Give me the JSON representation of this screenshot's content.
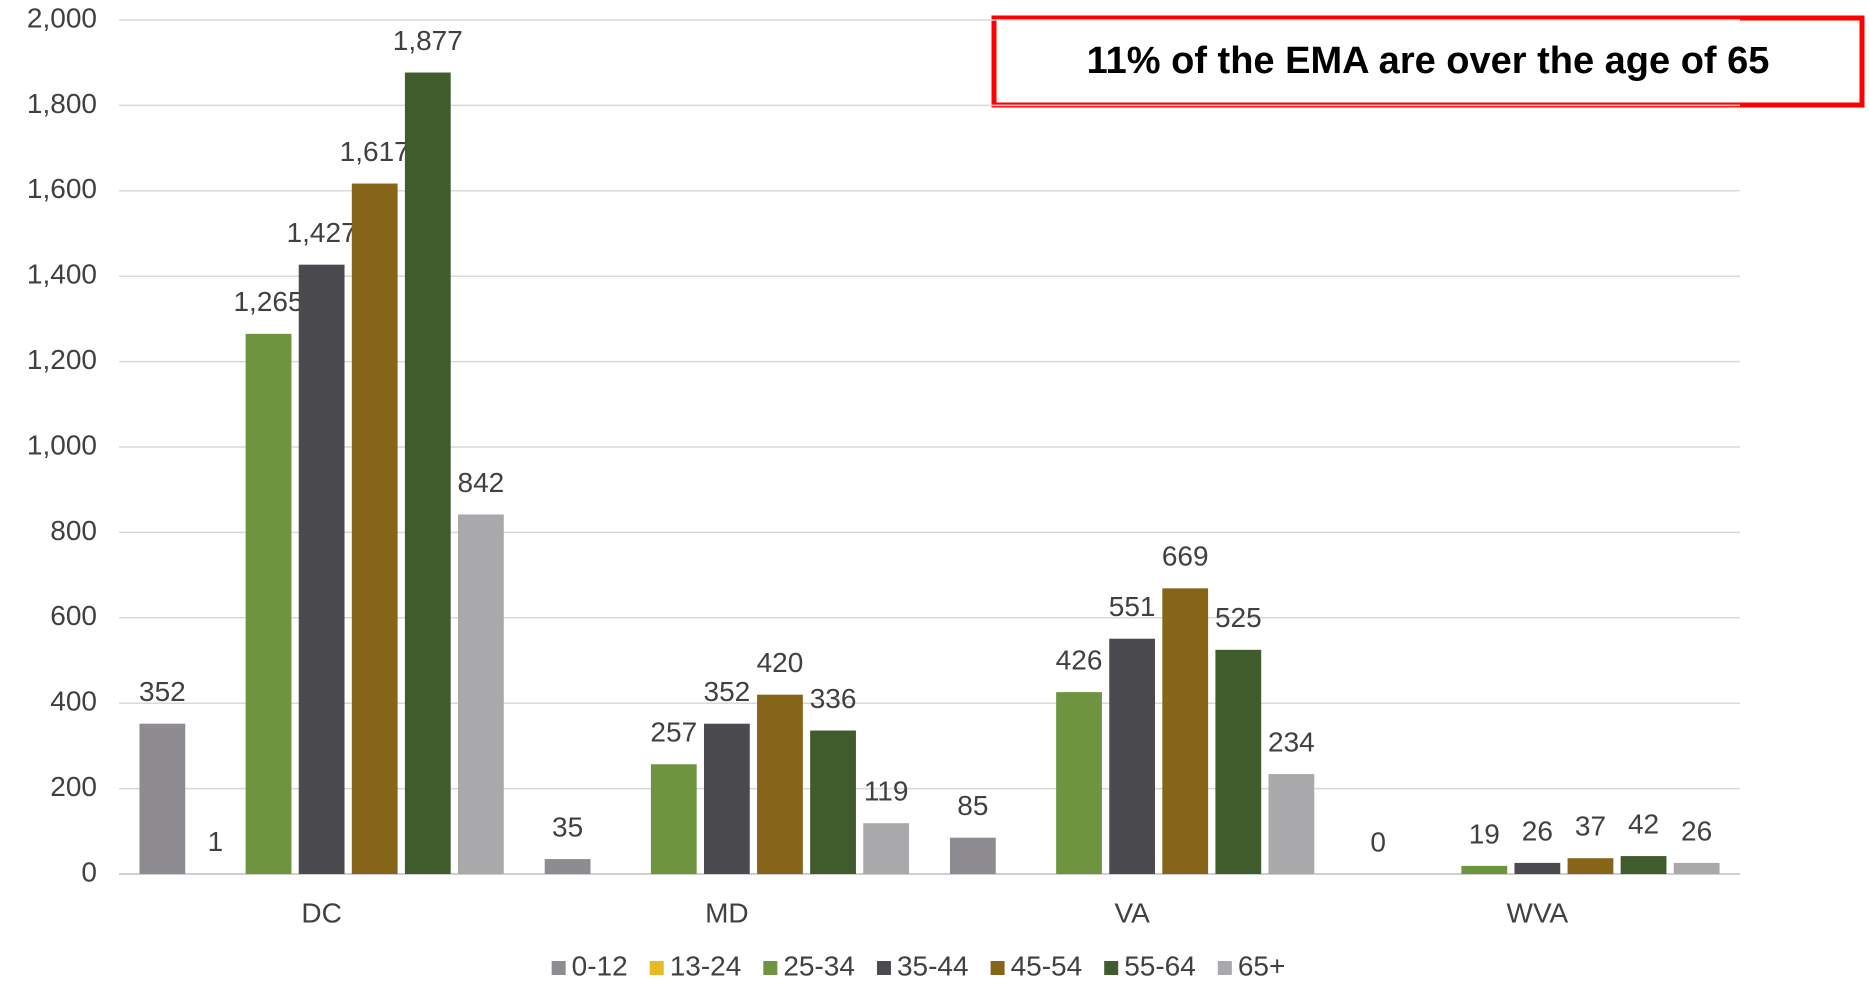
{
  "chart_data": {
    "type": "bar",
    "annotation": "11% of the EMA are over the age of 65",
    "categories": [
      "DC",
      "MD",
      "VA",
      "WVA"
    ],
    "series": [
      {
        "name": "0-12",
        "color": "#8e8c91",
        "values": [
          352,
          35,
          85,
          0
        ],
        "value_labels": [
          "352",
          "35",
          "85",
          "0"
        ]
      },
      {
        "name": "13-24",
        "color": "#e8b923",
        "values": [
          1,
          null,
          null,
          null
        ],
        "value_labels": [
          "1",
          null,
          null,
          null
        ]
      },
      {
        "name": "25-34",
        "color": "#6f9440",
        "values": [
          1265,
          257,
          426,
          19
        ],
        "value_labels": [
          "1,265",
          "257",
          "426",
          "19"
        ]
      },
      {
        "name": "35-44",
        "color": "#4b4a4f",
        "values": [
          1427,
          352,
          551,
          26
        ],
        "value_labels": [
          "1,427",
          "352",
          "551",
          "26"
        ]
      },
      {
        "name": "45-54",
        "color": "#866518",
        "values": [
          1617,
          420,
          669,
          37
        ],
        "value_labels": [
          "1,617",
          "420",
          "669",
          "37"
        ]
      },
      {
        "name": "55-64",
        "color": "#415c2c",
        "values": [
          1877,
          336,
          525,
          42
        ],
        "value_labels": [
          "1,877",
          "336",
          "525",
          "42"
        ]
      },
      {
        "name": "65+",
        "color": "#a9a9ab",
        "values": [
          842,
          119,
          234,
          26
        ],
        "value_labels": [
          "842",
          "119",
          "234",
          "26"
        ]
      }
    ],
    "ylim": [
      0,
      2000
    ],
    "yticks": [
      0,
      200,
      400,
      600,
      800,
      {
        "value": 1000,
        "label": "1,000"
      },
      {
        "value": 1200,
        "label": "1,200"
      },
      {
        "value": 1400,
        "label": "1,400"
      },
      {
        "value": 1600,
        "label": "1,600"
      },
      {
        "value": 1800,
        "label": "1,800"
      },
      {
        "value": 2000,
        "label": "2,000"
      }
    ],
    "grid": true,
    "legend": "bottom"
  }
}
